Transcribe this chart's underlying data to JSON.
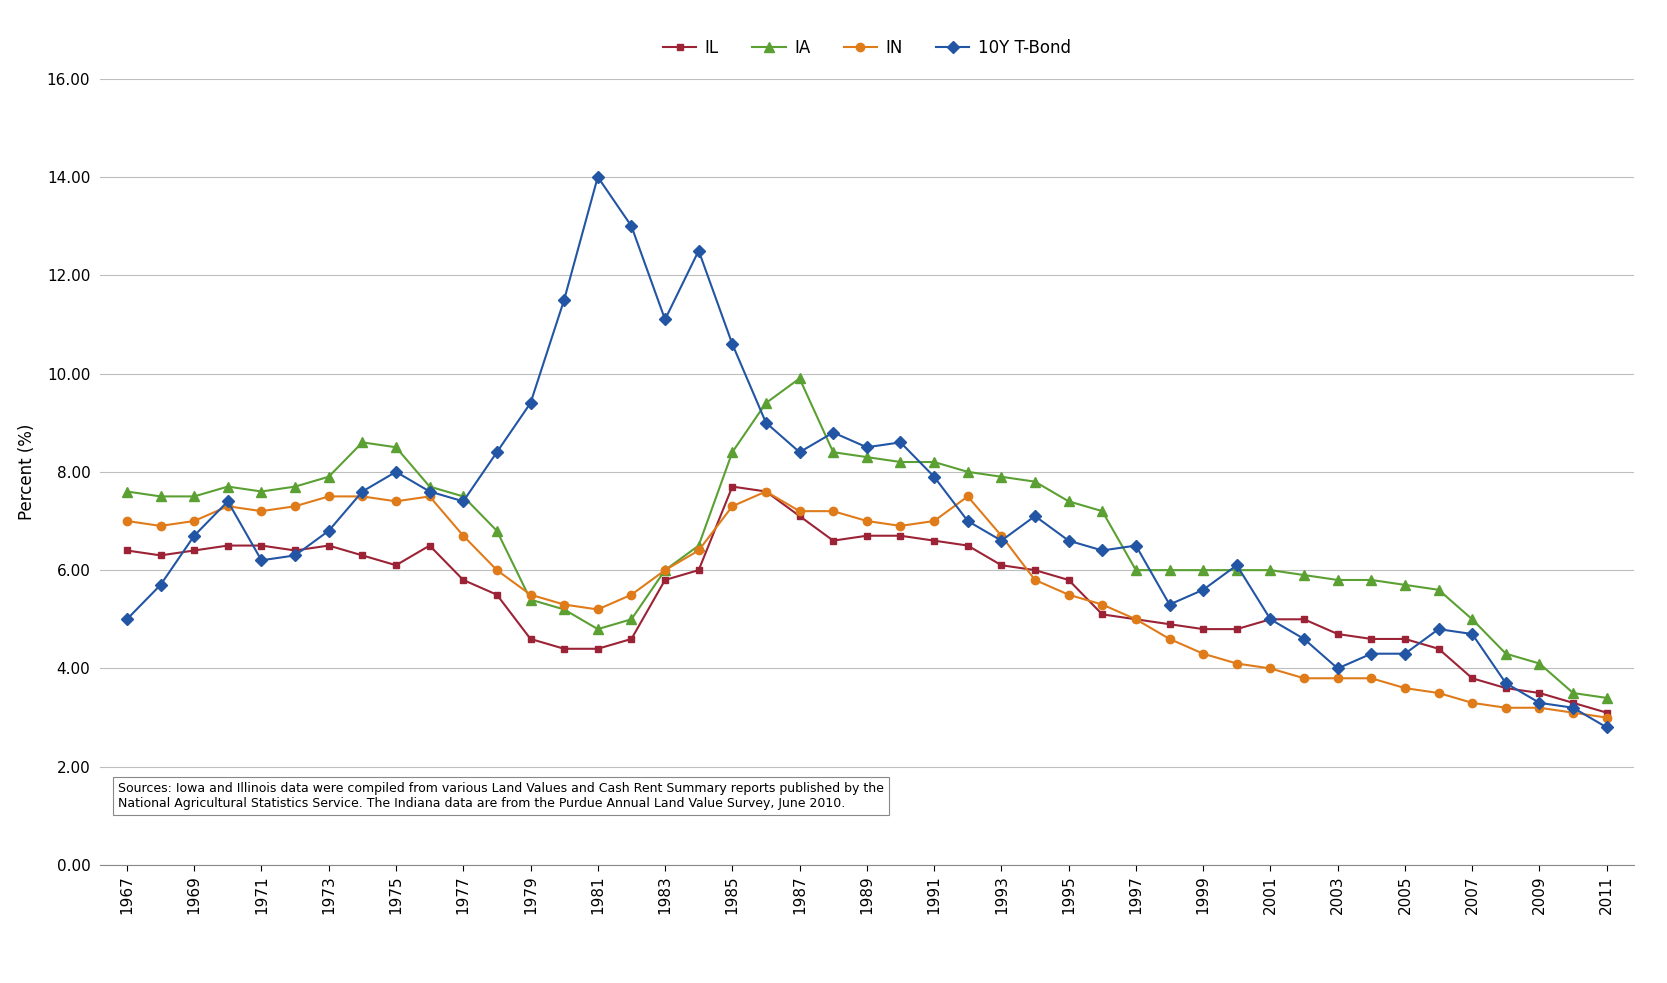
{
  "years": [
    1967,
    1968,
    1969,
    1970,
    1971,
    1972,
    1973,
    1974,
    1975,
    1976,
    1977,
    1978,
    1979,
    1980,
    1981,
    1982,
    1983,
    1984,
    1985,
    1986,
    1987,
    1988,
    1989,
    1990,
    1991,
    1992,
    1993,
    1994,
    1995,
    1996,
    1997,
    1998,
    1999,
    2000,
    2001,
    2002,
    2003,
    2004,
    2005,
    2006,
    2007,
    2008,
    2009,
    2010,
    2011
  ],
  "IL": [
    6.4,
    6.3,
    6.4,
    6.5,
    6.5,
    6.4,
    6.5,
    6.3,
    6.1,
    6.5,
    5.8,
    5.5,
    4.6,
    4.4,
    4.4,
    4.6,
    5.8,
    6.0,
    7.7,
    7.6,
    7.1,
    6.6,
    6.7,
    6.7,
    6.6,
    6.5,
    6.1,
    6.0,
    5.8,
    5.1,
    5.0,
    4.9,
    4.8,
    4.8,
    5.0,
    5.0,
    4.7,
    4.6,
    4.6,
    4.4,
    3.8,
    3.6,
    3.5,
    3.3,
    3.1
  ],
  "IA": [
    7.6,
    7.5,
    7.5,
    7.7,
    7.6,
    7.7,
    7.9,
    8.6,
    8.5,
    7.7,
    7.5,
    6.8,
    5.4,
    5.2,
    4.8,
    5.0,
    6.0,
    6.5,
    8.4,
    9.4,
    9.9,
    8.4,
    8.3,
    8.2,
    8.2,
    8.0,
    7.9,
    7.8,
    7.4,
    7.2,
    6.0,
    6.0,
    6.0,
    6.0,
    6.0,
    5.9,
    5.8,
    5.8,
    5.7,
    5.6,
    5.0,
    4.3,
    4.1,
    3.5,
    3.4
  ],
  "IN": [
    7.0,
    6.9,
    7.0,
    7.3,
    7.2,
    7.3,
    7.5,
    7.5,
    7.4,
    7.5,
    6.7,
    6.0,
    5.5,
    5.3,
    5.2,
    5.5,
    6.0,
    6.4,
    7.3,
    7.6,
    7.2,
    7.2,
    7.0,
    6.9,
    7.0,
    7.5,
    6.7,
    5.8,
    5.5,
    5.3,
    5.0,
    4.6,
    4.3,
    4.1,
    4.0,
    3.8,
    3.8,
    3.8,
    3.6,
    3.5,
    3.3,
    3.2,
    3.2,
    3.1,
    3.0
  ],
  "tbond": [
    5.0,
    5.7,
    6.7,
    7.4,
    6.2,
    6.3,
    6.8,
    7.6,
    8.0,
    7.6,
    7.4,
    8.4,
    9.4,
    11.5,
    14.0,
    13.0,
    11.1,
    12.5,
    10.6,
    9.0,
    8.4,
    8.8,
    8.5,
    8.6,
    7.9,
    7.0,
    6.6,
    7.1,
    6.6,
    6.4,
    6.5,
    5.3,
    5.6,
    6.1,
    5.0,
    4.6,
    4.0,
    4.3,
    4.3,
    4.8,
    4.7,
    3.7,
    3.3,
    3.2,
    2.8
  ],
  "IL_color": "#9B2335",
  "IA_color": "#5BA033",
  "IN_color": "#E07B1A",
  "tbond_color": "#2255A4",
  "ylabel": "Percent (%)",
  "ylim_min": 0.0,
  "ylim_max": 16.0,
  "ytick_step": 2.0,
  "background_color": "#ffffff",
  "grid_color": "#BEBEBE",
  "source_text_line1": "Sources: Iowa and Illinois data were compiled from various Land Values and Cash Rent Summary reports published by the",
  "source_text_line2": "National Agricultural Statistics Service. The Indiana data are from the Purdue Annual Land Value Survey, June 2010."
}
